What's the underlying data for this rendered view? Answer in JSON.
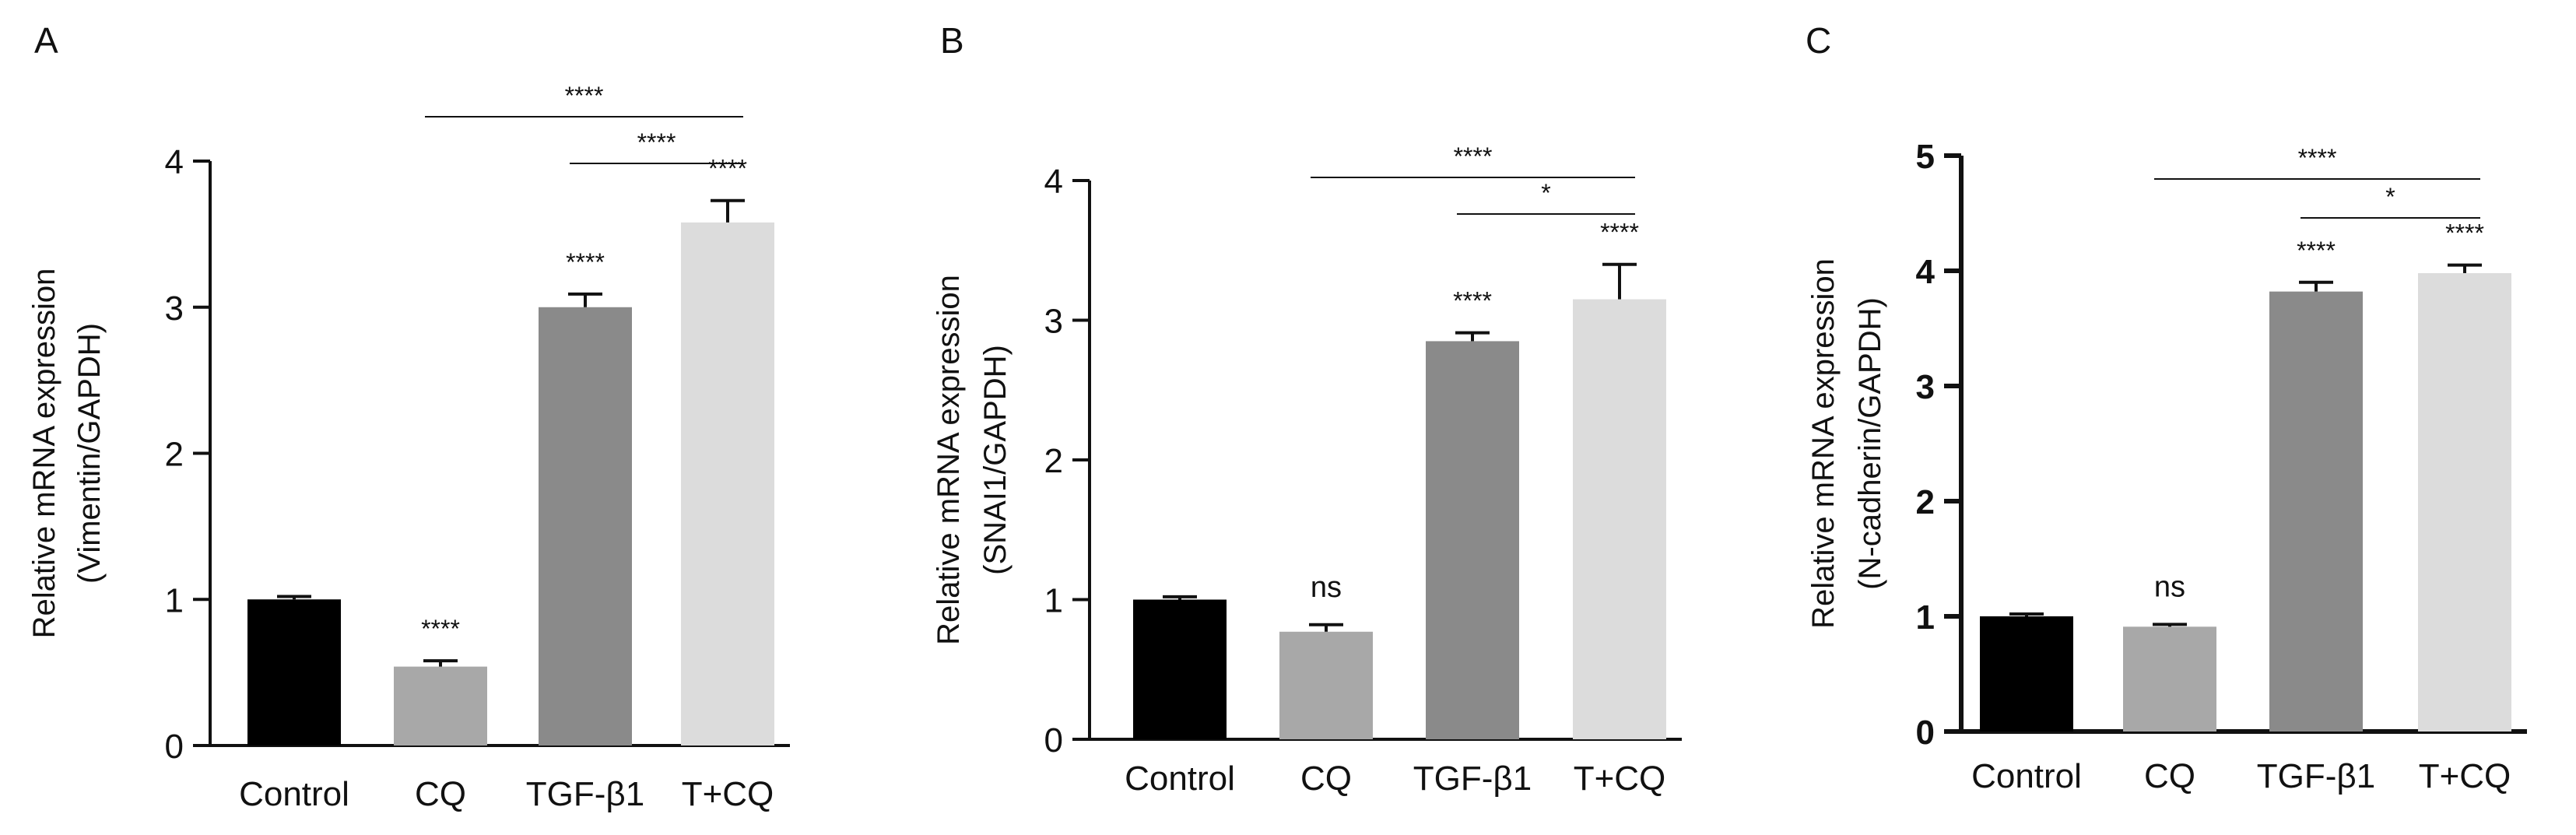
{
  "chart_data": [
    {
      "panel": "A",
      "type": "bar",
      "categories": [
        "Control",
        "CQ",
        "TGF-β1",
        "T+CQ"
      ],
      "values": [
        1.0,
        0.54,
        3.0,
        3.58
      ],
      "errors": [
        0.02,
        0.04,
        0.09,
        0.15
      ],
      "colors": [
        "#000000",
        "#a8a8a8",
        "#8a8a8a",
        "#dcdcdc"
      ],
      "ylabel": [
        "Relative mRNA expression",
        "(Vimentin/GAPDH)"
      ],
      "ylim": [
        0,
        4
      ],
      "yticks": [
        "0",
        "1",
        "2",
        "3",
        "4"
      ],
      "bar_sig": [
        "",
        "****",
        "****",
        "****"
      ],
      "brackets": [
        {
          "from": 1,
          "to": 3,
          "label": "****"
        },
        {
          "from": 2,
          "to": 3,
          "label": "****"
        }
      ]
    },
    {
      "panel": "B",
      "type": "bar",
      "categories": [
        "Control",
        "CQ",
        "TGF-β1",
        "T+CQ"
      ],
      "values": [
        1.0,
        0.77,
        2.85,
        3.15
      ],
      "errors": [
        0.02,
        0.05,
        0.06,
        0.25
      ],
      "colors": [
        "#000000",
        "#a8a8a8",
        "#8a8a8a",
        "#dcdcdc"
      ],
      "ylabel": [
        "Relative mRNA expression",
        "(SNAI1/GAPDH)"
      ],
      "ylim": [
        0,
        4
      ],
      "yticks": [
        "0",
        "1",
        "2",
        "3",
        "4"
      ],
      "bar_sig": [
        "",
        "ns",
        "****",
        "****"
      ],
      "brackets": [
        {
          "from": 1,
          "to": 3,
          "label": "****"
        },
        {
          "from": 2,
          "to": 3,
          "label": "*"
        }
      ]
    },
    {
      "panel": "C",
      "type": "bar",
      "categories": [
        "Control",
        "CQ",
        "TGF-β1",
        "T+CQ"
      ],
      "values": [
        1.0,
        0.91,
        3.82,
        3.98
      ],
      "errors": [
        0.02,
        0.02,
        0.08,
        0.07
      ],
      "colors": [
        "#000000",
        "#a8a8a8",
        "#8a8a8a",
        "#dcdcdc"
      ],
      "ylabel": [
        "Relative mRNA expression",
        "(N-cadherin/GAPDH)"
      ],
      "ylim": [
        0,
        5
      ],
      "yticks": [
        "0",
        "1",
        "2",
        "3",
        "4",
        "5"
      ],
      "bar_sig": [
        "",
        "ns",
        "****",
        "****"
      ],
      "brackets": [
        {
          "from": 1,
          "to": 3,
          "label": "****"
        },
        {
          "from": 2,
          "to": 3,
          "label": "*"
        }
      ]
    }
  ]
}
